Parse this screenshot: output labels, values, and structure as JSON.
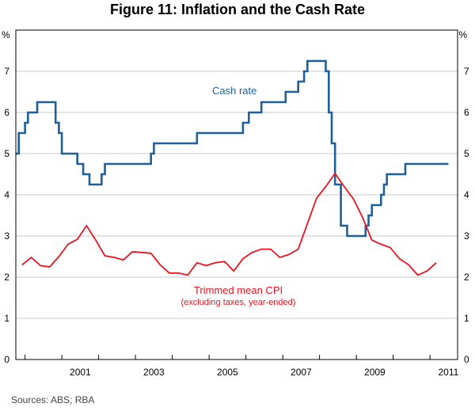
{
  "chart_data": {
    "type": "line",
    "title": "Figure 11: Inflation and the Cash Rate",
    "unit_left": "%",
    "unit_right": "%",
    "ylim": [
      0,
      8
    ],
    "yticks": [
      "0",
      "1",
      "2",
      "3",
      "4",
      "5",
      "6",
      "7"
    ],
    "xlim": [
      1999.75,
      2011.75
    ],
    "xticks": [
      {
        "value": 2001,
        "label": "2001"
      },
      {
        "value": 2003,
        "label": "2003"
      },
      {
        "value": 2005,
        "label": "2005"
      },
      {
        "value": 2007,
        "label": "2007"
      },
      {
        "value": 2009,
        "label": "2009"
      },
      {
        "value": 2011,
        "label": "2011"
      }
    ],
    "year_separators": [
      2000,
      2001,
      2002,
      2003,
      2004,
      2005,
      2006,
      2007,
      2008,
      2009,
      2010,
      2011
    ],
    "series": [
      {
        "name": "Cash rate",
        "color": "#1f5f9a",
        "step": true,
        "points": [
          [
            1999.75,
            5.0
          ],
          [
            1999.83,
            5.5
          ],
          [
            2000.0,
            5.75
          ],
          [
            2000.08,
            6.0
          ],
          [
            2000.33,
            6.25
          ],
          [
            2000.83,
            5.75
          ],
          [
            2000.92,
            5.5
          ],
          [
            2001.0,
            5.0
          ],
          [
            2001.42,
            4.75
          ],
          [
            2001.58,
            4.5
          ],
          [
            2001.75,
            4.25
          ],
          [
            2002.08,
            4.5
          ],
          [
            2002.17,
            4.75
          ],
          [
            2003.42,
            5.0
          ],
          [
            2003.5,
            5.25
          ],
          [
            2004.67,
            5.5
          ],
          [
            2005.92,
            5.75
          ],
          [
            2006.08,
            6.0
          ],
          [
            2006.42,
            6.25
          ],
          [
            2007.08,
            6.5
          ],
          [
            2007.42,
            6.75
          ],
          [
            2007.58,
            7.0
          ],
          [
            2007.67,
            7.25
          ],
          [
            2008.17,
            7.0
          ],
          [
            2008.25,
            6.0
          ],
          [
            2008.33,
            5.25
          ],
          [
            2008.42,
            4.25
          ],
          [
            2008.58,
            3.25
          ],
          [
            2008.75,
            3.0
          ],
          [
            2009.25,
            3.25
          ],
          [
            2009.33,
            3.5
          ],
          [
            2009.42,
            3.75
          ],
          [
            2009.67,
            4.0
          ],
          [
            2009.75,
            4.25
          ],
          [
            2009.83,
            4.5
          ],
          [
            2010.33,
            4.75
          ],
          [
            2011.5,
            4.75
          ]
        ],
        "label": "Cash rate",
        "sublabel": ""
      },
      {
        "name": "Trimmed mean CPI",
        "color": "#e8141f",
        "step": false,
        "points": [
          [
            1999.92,
            2.3
          ],
          [
            2000.17,
            2.48
          ],
          [
            2000.42,
            2.28
          ],
          [
            2000.67,
            2.25
          ],
          [
            2000.92,
            2.5
          ],
          [
            2001.17,
            2.8
          ],
          [
            2001.42,
            2.92
          ],
          [
            2001.67,
            3.25
          ],
          [
            2001.92,
            2.9
          ],
          [
            2002.17,
            2.52
          ],
          [
            2002.42,
            2.48
          ],
          [
            2002.67,
            2.42
          ],
          [
            2002.92,
            2.62
          ],
          [
            2003.17,
            2.6
          ],
          [
            2003.42,
            2.58
          ],
          [
            2003.67,
            2.3
          ],
          [
            2003.92,
            2.1
          ],
          [
            2004.17,
            2.1
          ],
          [
            2004.42,
            2.05
          ],
          [
            2004.67,
            2.35
          ],
          [
            2004.92,
            2.28
          ],
          [
            2005.17,
            2.35
          ],
          [
            2005.42,
            2.38
          ],
          [
            2005.67,
            2.15
          ],
          [
            2005.92,
            2.45
          ],
          [
            2006.17,
            2.6
          ],
          [
            2006.42,
            2.68
          ],
          [
            2006.67,
            2.68
          ],
          [
            2006.92,
            2.48
          ],
          [
            2007.17,
            2.55
          ],
          [
            2007.42,
            2.68
          ],
          [
            2007.67,
            3.3
          ],
          [
            2007.92,
            3.92
          ],
          [
            2008.17,
            4.2
          ],
          [
            2008.42,
            4.52
          ],
          [
            2008.67,
            4.2
          ],
          [
            2008.92,
            3.9
          ],
          [
            2009.17,
            3.45
          ],
          [
            2009.42,
            2.9
          ],
          [
            2009.67,
            2.8
          ],
          [
            2009.92,
            2.72
          ],
          [
            2010.17,
            2.45
          ],
          [
            2010.42,
            2.3
          ],
          [
            2010.67,
            2.05
          ],
          [
            2010.92,
            2.15
          ],
          [
            2011.17,
            2.35
          ]
        ],
        "label": "Trimmed mean CPI",
        "sublabel": "(excluding taxes, year-ended)"
      }
    ]
  },
  "source_text": "Sources:   ABS; RBA"
}
